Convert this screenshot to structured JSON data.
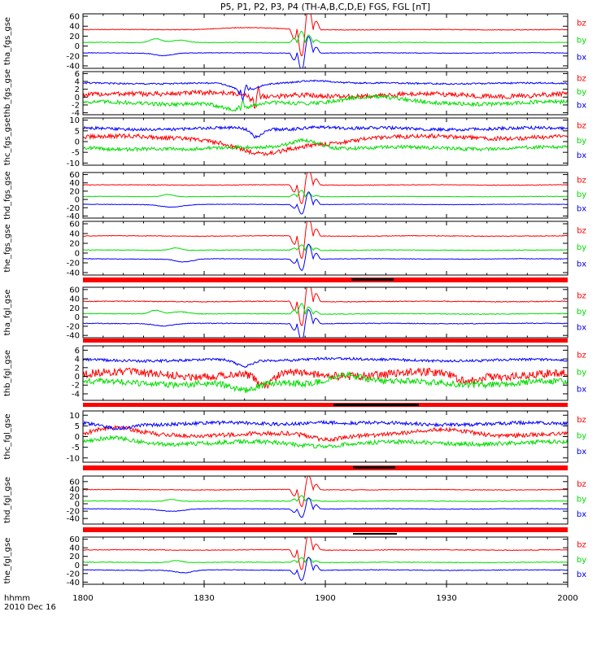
{
  "chart_data": {
    "type": "line",
    "title": "P5, P1, P2, P3, P4 (TH-A,B,C,D,E) FGS, FGL [nT]",
    "time_axis": {
      "tick_labels": [
        "1800",
        "1830",
        "1900",
        "1930",
        "2000"
      ],
      "tick_minutes": [
        0,
        30,
        60,
        90,
        120
      ],
      "range_minutes": [
        0,
        120
      ],
      "label_line1": "hhmm",
      "label_line2": "2010 Dec 16"
    },
    "colors": {
      "bx": "#0000ff",
      "by": "#00dd00",
      "bz": "#ff0000",
      "bar": "#ff0000",
      "axis": "#000000"
    },
    "legend": [
      "bz",
      "by",
      "bx"
    ],
    "panels": [
      {
        "id": "tha_fgs_gse",
        "ylabel": "tha_fgs_gse",
        "ylim": [
          -45,
          65
        ],
        "yticks": [
          60,
          40,
          20,
          0,
          -20,
          -40
        ],
        "series": [
          {
            "name": "bx",
            "level": -14,
            "noise": 0.6,
            "bumps": [
              [
                20,
                -5,
                3
              ],
              [
                55,
                4,
                2
              ]
            ],
            "spike": [
              55,
              4,
              -50,
              40
            ]
          },
          {
            "name": "by",
            "level": 7,
            "noise": 0.6,
            "bumps": [
              [
                18,
                8,
                2
              ],
              [
                24,
                5,
                3
              ]
            ],
            "spike": [
              55,
              4,
              30,
              20
            ]
          },
          {
            "name": "bz",
            "level": 33,
            "noise": 0.7,
            "bumps": [
              [
                40,
                4,
                10
              ]
            ],
            "spike": [
              55,
              4,
              -70,
              60
            ]
          }
        ]
      },
      {
        "id": "thb_fgs_gse",
        "ylabel": "thb_fgs_gse",
        "ylim": [
          -4.5,
          6.5
        ],
        "yticks": [
          6,
          4,
          2,
          0,
          -2,
          -4
        ],
        "series": [
          {
            "name": "bx",
            "level": 3.5,
            "noise": 0.2,
            "bumps": [
              [
                40,
                -2,
                4
              ],
              [
                57,
                0.8,
                6
              ]
            ],
            "spike": [
              40,
              2,
              -3,
              2
            ]
          },
          {
            "name": "by",
            "level": -1.5,
            "noise": 0.5,
            "bumps": [
              [
                38,
                -2,
                5
              ],
              [
                70,
                1.5,
                10
              ]
            ],
            "spike": [
              40,
              2,
              3,
              0
            ]
          },
          {
            "name": "bz",
            "level": 0.5,
            "noise": 0.6,
            "bumps": [
              [
                30,
                1,
                10
              ],
              [
                45,
                -1,
                6
              ]
            ],
            "spike": [
              43,
              2,
              -4,
              3
            ]
          }
        ]
      },
      {
        "id": "thc_fgs_gse",
        "ylabel": "thc_fgs_gse",
        "ylim": [
          -11,
          11
        ],
        "yticks": [
          10,
          5,
          0,
          -5,
          -10
        ],
        "series": [
          {
            "name": "bx",
            "level": 6,
            "noise": 0.7,
            "bumps": [
              [
                43,
                -4,
                2
              ],
              [
                58,
                1,
                5
              ]
            ]
          },
          {
            "name": "by",
            "level": -3,
            "noise": 0.8,
            "bumps": [
              [
                8,
                -1,
                6
              ],
              [
                55,
                4,
                5
              ]
            ]
          },
          {
            "name": "bz",
            "level": 2,
            "noise": 1.0,
            "bumps": [
              [
                45,
                -8,
                10
              ],
              [
                60,
                -2,
                8
              ]
            ]
          }
        ]
      },
      {
        "id": "thd_fgs_gse",
        "ylabel": "thd_fgs_gse",
        "ylim": [
          -45,
          65
        ],
        "yticks": [
          60,
          40,
          20,
          0,
          -20,
          -40
        ],
        "series": [
          {
            "name": "bx",
            "level": -12,
            "noise": 0.6,
            "bumps": [
              [
                22,
                -6,
                4
              ]
            ],
            "spike": [
              55,
              4,
              -30,
              40
            ]
          },
          {
            "name": "by",
            "level": 7,
            "noise": 0.6,
            "bumps": [
              [
                21,
                5,
                2
              ]
            ],
            "spike": [
              55,
              4,
              20,
              10
            ]
          },
          {
            "name": "bz",
            "level": 35,
            "noise": 0.7,
            "bumps": [],
            "spike": [
              55,
              4,
              -60,
              50
            ]
          }
        ]
      },
      {
        "id": "the_fgs_gse",
        "ylabel": "the_fgs_gse",
        "ylim": [
          -45,
          65
        ],
        "yticks": [
          60,
          40,
          20,
          0,
          -20,
          -40
        ],
        "series": [
          {
            "name": "bx",
            "level": -12,
            "noise": 0.6,
            "bumps": [
              [
                25,
                -6,
                3
              ]
            ],
            "spike": [
              55,
              4,
              -30,
              40
            ]
          },
          {
            "name": "by",
            "level": 6,
            "noise": 0.6,
            "bumps": [
              [
                23,
                5,
                2
              ]
            ],
            "spike": [
              55,
              4,
              15,
              15
            ]
          },
          {
            "name": "bz",
            "level": 35,
            "noise": 0.7,
            "bumps": [],
            "spike": [
              55,
              4,
              -60,
              50
            ]
          }
        ]
      },
      {
        "id": "tha_fgl_gse",
        "ylabel": "tha_fgl_gse",
        "ylim": [
          -45,
          65
        ],
        "yticks": [
          60,
          40,
          20,
          0,
          -20,
          -40
        ],
        "series": [
          {
            "name": "bx",
            "level": -14,
            "noise": 0.8,
            "bumps": [
              [
                20,
                -5,
                3
              ]
            ],
            "spike": [
              55,
              4,
              -50,
              40
            ]
          },
          {
            "name": "by",
            "level": 7,
            "noise": 0.8,
            "bumps": [
              [
                18,
                8,
                2
              ],
              [
                24,
                5,
                3
              ]
            ],
            "spike": [
              55,
              4,
              30,
              20
            ]
          },
          {
            "name": "bz",
            "level": 34,
            "noise": 0.9,
            "bumps": [],
            "spike": [
              55,
              4,
              -70,
              60
            ]
          }
        ]
      },
      {
        "id": "thb_fgl_gse",
        "ylabel": "thb_fgl_gse",
        "ylim": [
          -5.5,
          7
        ],
        "yticks": [
          6,
          4,
          2,
          0,
          -2,
          -4
        ],
        "series": [
          {
            "name": "bx",
            "level": 3.7,
            "noise": 0.3,
            "bumps": [
              [
                40,
                -1.5,
                3
              ],
              [
                60,
                0.5,
                8
              ]
            ]
          },
          {
            "name": "by",
            "level": -1.5,
            "noise": 0.7,
            "bumps": [
              [
                65,
                2,
                6
              ],
              [
                40,
                -2,
                5
              ]
            ]
          },
          {
            "name": "bz",
            "level": 0.5,
            "noise": 0.9,
            "bumps": [
              [
                45,
                -3,
                3
              ],
              [
                95,
                -1.5,
                4
              ]
            ]
          }
        ]
      },
      {
        "id": "thc_fgl_gse",
        "ylabel": "thc_fgl_gse",
        "ylim": [
          -12,
          12
        ],
        "yticks": [
          10,
          5,
          0,
          -5,
          -10
        ],
        "series": [
          {
            "name": "bx",
            "level": 6,
            "noise": 0.8,
            "bumps": [
              [
                8,
                -2,
                5
              ],
              [
                58,
                1,
                6
              ]
            ]
          },
          {
            "name": "by",
            "level": -3,
            "noise": 1.0,
            "bumps": [
              [
                8,
                2,
                6
              ],
              [
                58,
                -1,
                6
              ]
            ]
          },
          {
            "name": "bz",
            "level": 1,
            "noise": 1.0,
            "bumps": [
              [
                8,
                3,
                6
              ],
              [
                60,
                -2,
                5
              ],
              [
                90,
                2,
                8
              ]
            ]
          }
        ]
      },
      {
        "id": "thd_fgl_gse",
        "ylabel": "thd_fgl_gse",
        "ylim": [
          -55,
          75
        ],
        "yticks": [
          60,
          40,
          20,
          0,
          -20,
          -40
        ],
        "series": [
          {
            "name": "bx",
            "level": -14,
            "noise": 0.8,
            "bumps": [
              [
                22,
                -6,
                4
              ]
            ],
            "spike": [
              55,
              4,
              -30,
              40
            ]
          },
          {
            "name": "by",
            "level": 7,
            "noise": 0.8,
            "bumps": [
              [
                22,
                5,
                2
              ]
            ],
            "spike": [
              55,
              4,
              20,
              10
            ]
          },
          {
            "name": "bz",
            "level": 38,
            "noise": 0.9,
            "bumps": [],
            "spike": [
              55,
              4,
              -60,
              50
            ]
          }
        ]
      },
      {
        "id": "the_fgl_gse",
        "ylabel": "the_fgl_gse",
        "ylim": [
          -45,
          65
        ],
        "yticks": [
          60,
          40,
          20,
          0,
          -20,
          -40
        ],
        "series": [
          {
            "name": "bx",
            "level": -12,
            "noise": 0.8,
            "bumps": [
              [
                25,
                -6,
                3
              ]
            ],
            "spike": [
              55,
              4,
              -30,
              40
            ]
          },
          {
            "name": "by",
            "level": 6,
            "noise": 0.8,
            "bumps": [
              [
                23,
                5,
                2
              ]
            ],
            "spike": [
              55,
              4,
              15,
              15
            ]
          },
          {
            "name": "bz",
            "level": 35,
            "noise": 0.9,
            "bumps": [],
            "spike": [
              55,
              4,
              -60,
              50
            ]
          }
        ]
      }
    ]
  }
}
